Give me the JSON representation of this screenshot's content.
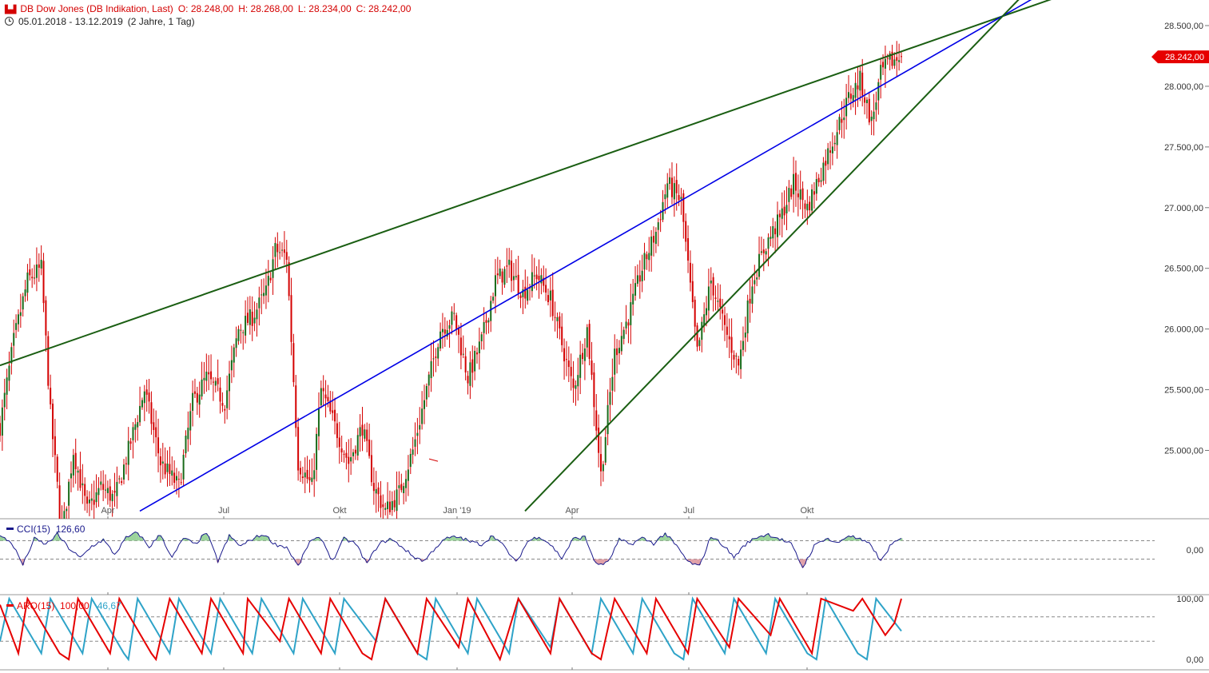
{
  "header": {
    "instrument": "DB Dow Jones (DB Indikation, Last)",
    "open": "O: 28.248,00",
    "high": "H: 28.268,00",
    "low": "L: 28.234,00",
    "close": "C: 28.242,00",
    "range": "05.01.2018 - 13.12.2019",
    "period": "(2 Jahre, 1 Tag)"
  },
  "indicators": {
    "cci_name": "CCI(15)",
    "cci_value": "126,60",
    "aro_name": "ARO(15)",
    "aro_up_value": "100,00",
    "aro_down_value": "46,67"
  },
  "colors": {
    "up_candle": "#1a6b1a",
    "down_candle": "#d40000",
    "trend_green": "#1a5e12",
    "trend_blue": "#0000e6",
    "cci_line": "#1a1a8c",
    "aroon_up": "#e60000",
    "aroon_down": "#2ea3c8",
    "last_price_tag": "#e60000"
  },
  "chart_data": {
    "type": "candlestick",
    "x_ticks": [
      "Apr",
      "Jul",
      "Okt",
      "Jan '19",
      "Apr",
      "Jul",
      "Okt"
    ],
    "y_ticks": [
      "28.500,00",
      "28.000,00",
      "27.500,00",
      "27.000,00",
      "26.500,00",
      "26.000,00",
      "25.500,00",
      "25.000,00"
    ],
    "ylim": [
      24500,
      28700
    ],
    "last_price": "28.242,00",
    "close_path": [
      [
        0,
        25200
      ],
      [
        6,
        25900
      ],
      [
        12,
        26400
      ],
      [
        18,
        26500
      ],
      [
        22,
        25300
      ],
      [
        27,
        24300
      ],
      [
        32,
        25000
      ],
      [
        38,
        24500
      ],
      [
        44,
        24700
      ],
      [
        50,
        24600
      ],
      [
        56,
        25000
      ],
      [
        63,
        25500
      ],
      [
        70,
        24900
      ],
      [
        78,
        24700
      ],
      [
        84,
        25400
      ],
      [
        90,
        25600
      ],
      [
        98,
        25400
      ],
      [
        104,
        26000
      ],
      [
        110,
        26100
      ],
      [
        116,
        26300
      ],
      [
        120,
        26650
      ],
      [
        125,
        26600
      ],
      [
        130,
        24900
      ],
      [
        136,
        24700
      ],
      [
        140,
        25500
      ],
      [
        146,
        25200
      ],
      [
        152,
        24900
      ],
      [
        158,
        25200
      ],
      [
        163,
        24700
      ],
      [
        168,
        24500
      ],
      [
        174,
        24650
      ],
      [
        180,
        25000
      ],
      [
        186,
        25500
      ],
      [
        192,
        26000
      ],
      [
        198,
        26100
      ],
      [
        204,
        25600
      ],
      [
        210,
        25900
      ],
      [
        216,
        26400
      ],
      [
        222,
        26500
      ],
      [
        228,
        26300
      ],
      [
        234,
        26450
      ],
      [
        240,
        26250
      ],
      [
        246,
        25800
      ],
      [
        250,
        25500
      ],
      [
        256,
        26000
      ],
      [
        262,
        24800
      ],
      [
        268,
        25800
      ],
      [
        274,
        26100
      ],
      [
        280,
        26500
      ],
      [
        286,
        26800
      ],
      [
        291,
        27200
      ],
      [
        297,
        27050
      ],
      [
        304,
        25800
      ],
      [
        310,
        26400
      ],
      [
        316,
        26000
      ],
      [
        322,
        25700
      ],
      [
        328,
        26400
      ],
      [
        334,
        26700
      ],
      [
        340,
        26900
      ],
      [
        346,
        27200
      ],
      [
        352,
        27000
      ],
      [
        358,
        27300
      ],
      [
        364,
        27600
      ],
      [
        370,
        27900
      ],
      [
        375,
        28050
      ],
      [
        380,
        27700
      ],
      [
        384,
        28100
      ],
      [
        388,
        28200
      ],
      [
        393,
        28242
      ]
    ],
    "cci": {
      "value": 126.6,
      "levels": [
        100,
        0,
        -100
      ],
      "path": [
        [
          0,
          150
        ],
        [
          5,
          80
        ],
        [
          10,
          -160
        ],
        [
          15,
          120
        ],
        [
          20,
          60
        ],
        [
          25,
          170
        ],
        [
          30,
          20
        ],
        [
          35,
          -90
        ],
        [
          40,
          40
        ],
        [
          45,
          110
        ],
        [
          50,
          -50
        ],
        [
          55,
          130
        ],
        [
          60,
          190
        ],
        [
          65,
          30
        ],
        [
          70,
          170
        ],
        [
          75,
          -90
        ],
        [
          80,
          130
        ],
        [
          85,
          60
        ],
        [
          90,
          190
        ],
        [
          95,
          -120
        ],
        [
          100,
          150
        ],
        [
          105,
          40
        ],
        [
          110,
          120
        ],
        [
          115,
          170
        ],
        [
          120,
          60
        ],
        [
          125,
          30
        ],
        [
          130,
          -180
        ],
        [
          135,
          90
        ],
        [
          140,
          130
        ],
        [
          145,
          -120
        ],
        [
          150,
          120
        ],
        [
          155,
          70
        ],
        [
          160,
          -150
        ],
        [
          165,
          60
        ],
        [
          170,
          120
        ],
        [
          175,
          40
        ],
        [
          180,
          -70
        ],
        [
          185,
          -120
        ],
        [
          190,
          30
        ],
        [
          195,
          130
        ],
        [
          200,
          140
        ],
        [
          205,
          90
        ],
        [
          210,
          60
        ],
        [
          215,
          160
        ],
        [
          220,
          30
        ],
        [
          225,
          -140
        ],
        [
          230,
          90
        ],
        [
          235,
          150
        ],
        [
          240,
          60
        ],
        [
          245,
          -90
        ],
        [
          250,
          120
        ],
        [
          255,
          140
        ],
        [
          260,
          -160
        ],
        [
          265,
          -140
        ],
        [
          270,
          110
        ],
        [
          275,
          60
        ],
        [
          280,
          130
        ],
        [
          285,
          70
        ],
        [
          290,
          180
        ],
        [
          295,
          40
        ],
        [
          300,
          -130
        ],
        [
          305,
          -180
        ],
        [
          310,
          150
        ],
        [
          315,
          60
        ],
        [
          320,
          -80
        ],
        [
          325,
          60
        ],
        [
          330,
          140
        ],
        [
          335,
          170
        ],
        [
          340,
          120
        ],
        [
          345,
          60
        ],
        [
          350,
          -190
        ],
        [
          355,
          40
        ],
        [
          360,
          130
        ],
        [
          365,
          70
        ],
        [
          370,
          160
        ],
        [
          375,
          110
        ],
        [
          380,
          50
        ],
        [
          384,
          -130
        ],
        [
          388,
          40
        ],
        [
          393,
          126.6
        ]
      ]
    },
    "aroon": {
      "up_value": 100,
      "down_value": 46.67,
      "levels": [
        100,
        70,
        30,
        0
      ],
      "up_path": [
        [
          0,
          90
        ],
        [
          8,
          10
        ],
        [
          12,
          100
        ],
        [
          26,
          10
        ],
        [
          30,
          0
        ],
        [
          34,
          100
        ],
        [
          48,
          10
        ],
        [
          52,
          100
        ],
        [
          66,
          10
        ],
        [
          68,
          0
        ],
        [
          74,
          100
        ],
        [
          88,
          10
        ],
        [
          92,
          100
        ],
        [
          106,
          10
        ],
        [
          108,
          100
        ],
        [
          122,
          30
        ],
        [
          126,
          100
        ],
        [
          140,
          10
        ],
        [
          144,
          100
        ],
        [
          158,
          10
        ],
        [
          162,
          0
        ],
        [
          168,
          100
        ],
        [
          182,
          10
        ],
        [
          186,
          100
        ],
        [
          200,
          20
        ],
        [
          204,
          100
        ],
        [
          218,
          0
        ],
        [
          226,
          100
        ],
        [
          240,
          10
        ],
        [
          244,
          100
        ],
        [
          258,
          10
        ],
        [
          262,
          0
        ],
        [
          268,
          100
        ],
        [
          282,
          10
        ],
        [
          286,
          100
        ],
        [
          300,
          10
        ],
        [
          304,
          100
        ],
        [
          318,
          20
        ],
        [
          322,
          100
        ],
        [
          336,
          40
        ],
        [
          340,
          100
        ],
        [
          354,
          10
        ],
        [
          358,
          100
        ],
        [
          372,
          80
        ],
        [
          376,
          100
        ],
        [
          386,
          40
        ],
        [
          390,
          60
        ],
        [
          393,
          100
        ]
      ],
      "down_path": [
        [
          0,
          30
        ],
        [
          4,
          100
        ],
        [
          18,
          10
        ],
        [
          22,
          100
        ],
        [
          36,
          10
        ],
        [
          40,
          100
        ],
        [
          54,
          10
        ],
        [
          56,
          0
        ],
        [
          60,
          100
        ],
        [
          74,
          10
        ],
        [
          78,
          100
        ],
        [
          92,
          10
        ],
        [
          96,
          100
        ],
        [
          110,
          10
        ],
        [
          114,
          100
        ],
        [
          128,
          10
        ],
        [
          132,
          100
        ],
        [
          146,
          10
        ],
        [
          150,
          100
        ],
        [
          164,
          30
        ],
        [
          168,
          100
        ],
        [
          182,
          10
        ],
        [
          186,
          0
        ],
        [
          190,
          100
        ],
        [
          204,
          10
        ],
        [
          208,
          100
        ],
        [
          222,
          10
        ],
        [
          226,
          100
        ],
        [
          240,
          20
        ],
        [
          244,
          100
        ],
        [
          258,
          10
        ],
        [
          262,
          100
        ],
        [
          276,
          10
        ],
        [
          280,
          100
        ],
        [
          294,
          10
        ],
        [
          298,
          0
        ],
        [
          302,
          100
        ],
        [
          316,
          10
        ],
        [
          320,
          100
        ],
        [
          334,
          10
        ],
        [
          338,
          100
        ],
        [
          352,
          10
        ],
        [
          356,
          0
        ],
        [
          360,
          100
        ],
        [
          374,
          10
        ],
        [
          378,
          0
        ],
        [
          382,
          100
        ],
        [
          393,
          46.67
        ]
      ]
    }
  }
}
